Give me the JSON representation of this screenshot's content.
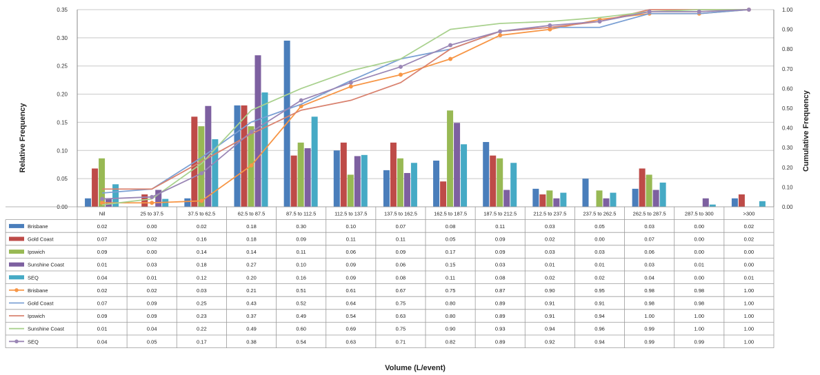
{
  "chart_data": {
    "type": "bar",
    "title": "",
    "xlabel": "Volume (L/event)",
    "ylabel": "Relative Frequency",
    "y2label": "Cumulative Frequency",
    "ylim": [
      0,
      0.35
    ],
    "y2lim": [
      0,
      1.0
    ],
    "yticks": [
      "0.00",
      "0.05",
      "0.10",
      "0.15",
      "0.20",
      "0.25",
      "0.30",
      "0.35"
    ],
    "y2ticks": [
      "0.00",
      "0.10",
      "0.20",
      "0.30",
      "0.40",
      "0.50",
      "0.60",
      "0.70",
      "0.80",
      "0.90",
      "1.00"
    ],
    "grid": true,
    "legend": "data-table",
    "categories": [
      "Nil",
      "25 to 37.5",
      "37.5 to 62.5",
      "62.5 to 87.5",
      "87.5 to 112.5",
      "112.5 to 137.5",
      "137.5 to 162.5",
      "162.5 to 187.5",
      "187.5 to 212.5",
      "212.5 to 237.5",
      "237.5 to 262.5",
      "262.5 to 287.5",
      "287.5 to 300",
      ">300"
    ],
    "bar_series": [
      {
        "name": "Brisbane",
        "color": "#4a7ebb",
        "values": [
          0.015,
          0.0,
          0.015,
          0.18,
          0.295,
          0.1,
          0.065,
          0.082,
          0.115,
          0.032,
          0.05,
          0.032,
          0.0,
          0.015
        ],
        "labels": [
          "0.02",
          "0.00",
          "0.02",
          "0.18",
          "0.30",
          "0.10",
          "0.07",
          "0.08",
          "0.11",
          "0.03",
          "0.05",
          "0.03",
          "0.00",
          "0.02"
        ]
      },
      {
        "name": "Gold Coast",
        "color": "#be4b48",
        "values": [
          0.068,
          0.022,
          0.16,
          0.18,
          0.091,
          0.114,
          0.114,
          0.045,
          0.091,
          0.022,
          0.0,
          0.068,
          0.0,
          0.022
        ],
        "labels": [
          "0.07",
          "0.02",
          "0.16",
          "0.18",
          "0.09",
          "0.11",
          "0.11",
          "0.05",
          "0.09",
          "0.02",
          "0.00",
          "0.07",
          "0.00",
          "0.02"
        ]
      },
      {
        "name": "Ipswich",
        "color": "#98b954",
        "values": [
          0.086,
          0.0,
          0.143,
          0.143,
          0.114,
          0.057,
          0.086,
          0.171,
          0.086,
          0.029,
          0.029,
          0.057,
          0.0,
          0.0
        ],
        "labels": [
          "0.09",
          "0.00",
          "0.14",
          "0.14",
          "0.11",
          "0.06",
          "0.09",
          "0.17",
          "0.09",
          "0.03",
          "0.03",
          "0.06",
          "0.00",
          "0.00"
        ]
      },
      {
        "name": "Sunshine Coast",
        "color": "#7d60a0",
        "values": [
          0.015,
          0.03,
          0.179,
          0.269,
          0.104,
          0.09,
          0.06,
          0.149,
          0.03,
          0.015,
          0.015,
          0.03,
          0.015,
          0.0
        ],
        "labels": [
          "0.01",
          "0.03",
          "0.18",
          "0.27",
          "0.10",
          "0.09",
          "0.06",
          "0.15",
          "0.03",
          "0.01",
          "0.01",
          "0.03",
          "0.01",
          "0.00"
        ]
      },
      {
        "name": "SEQ",
        "color": "#46aac5",
        "values": [
          0.04,
          0.014,
          0.12,
          0.203,
          0.16,
          0.092,
          0.078,
          0.111,
          0.078,
          0.025,
          0.025,
          0.043,
          0.004,
          0.01
        ],
        "labels": [
          "0.04",
          "0.01",
          "0.12",
          "0.20",
          "0.16",
          "0.09",
          "0.08",
          "0.11",
          "0.08",
          "0.02",
          "0.02",
          "0.04",
          "0.00",
          "0.01"
        ]
      }
    ],
    "line_series": [
      {
        "name": "Brisbane",
        "color": "#f79646",
        "marker": true,
        "values": [
          0.02,
          0.02,
          0.03,
          0.21,
          0.51,
          0.61,
          0.67,
          0.75,
          0.87,
          0.9,
          0.95,
          0.98,
          0.98,
          1.0
        ],
        "labels": [
          "0.02",
          "0.02",
          "0.03",
          "0.21",
          "0.51",
          "0.61",
          "0.67",
          "0.75",
          "0.87",
          "0.90",
          "0.95",
          "0.98",
          "0.98",
          "1.00"
        ]
      },
      {
        "name": "Gold Coast",
        "color": "#7ba0d4",
        "marker": false,
        "values": [
          0.07,
          0.09,
          0.25,
          0.43,
          0.52,
          0.64,
          0.75,
          0.8,
          0.89,
          0.91,
          0.91,
          0.98,
          0.98,
          1.0
        ],
        "labels": [
          "0.07",
          "0.09",
          "0.25",
          "0.43",
          "0.52",
          "0.64",
          "0.75",
          "0.80",
          "0.89",
          "0.91",
          "0.91",
          "0.98",
          "0.98",
          "1.00"
        ]
      },
      {
        "name": "Ipswich",
        "color": "#d9826f",
        "marker": false,
        "values": [
          0.09,
          0.09,
          0.23,
          0.37,
          0.49,
          0.54,
          0.63,
          0.8,
          0.89,
          0.91,
          0.94,
          1.0,
          1.0,
          1.0
        ],
        "labels": [
          "0.09",
          "0.09",
          "0.23",
          "0.37",
          "0.49",
          "0.54",
          "0.63",
          "0.80",
          "0.89",
          "0.91",
          "0.94",
          "1.00",
          "1.00",
          "1.00"
        ]
      },
      {
        "name": "Sunshine Coast",
        "color": "#a9d18e",
        "marker": false,
        "values": [
          0.01,
          0.04,
          0.22,
          0.49,
          0.6,
          0.69,
          0.75,
          0.9,
          0.93,
          0.94,
          0.96,
          0.99,
          1.0,
          1.0
        ],
        "labels": [
          "0.01",
          "0.04",
          "0.22",
          "0.49",
          "0.60",
          "0.69",
          "0.75",
          "0.90",
          "0.93",
          "0.94",
          "0.96",
          "0.99",
          "1.00",
          "1.00"
        ]
      },
      {
        "name": "SEQ",
        "color": "#9a86b5",
        "marker": true,
        "values": [
          0.04,
          0.05,
          0.17,
          0.38,
          0.54,
          0.63,
          0.71,
          0.82,
          0.89,
          0.92,
          0.94,
          0.99,
          0.99,
          1.0
        ],
        "labels": [
          "0.04",
          "0.05",
          "0.17",
          "0.38",
          "0.54",
          "0.63",
          "0.71",
          "0.82",
          "0.89",
          "0.92",
          "0.94",
          "0.99",
          "0.99",
          "1.00"
        ]
      }
    ]
  }
}
